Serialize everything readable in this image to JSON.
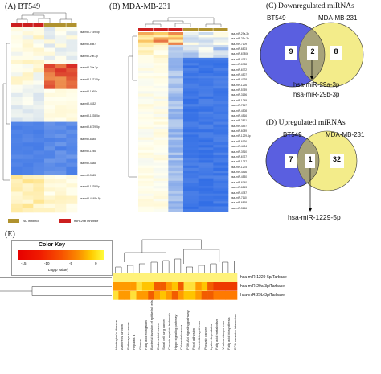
{
  "panels": {
    "a": {
      "title": "(A) BT549"
    },
    "b": {
      "title": "(B) MDA-MB-231"
    },
    "c": {
      "title": "(C) Downregulated miRNAs",
      "left_label": "BT549",
      "right_label": "MDA-MB-231",
      "left_count": "9",
      "overlap_count": "2",
      "right_count": "8",
      "genes": [
        "hsa-miR-29a-3p",
        "hsa-miR-29b-3p"
      ]
    },
    "d": {
      "title": "(D) Upregulated miRNAs",
      "left_label": "BT549",
      "right_label": "MDA-MB-231",
      "left_count": "7",
      "overlap_count": "1",
      "right_count": "32",
      "genes": [
        "hsa-miR-1229-5p"
      ]
    },
    "e": {
      "title": "(E)",
      "color_key_title": "Color Key",
      "ticks": [
        "-15",
        "-10",
        "-5",
        "0"
      ],
      "axis_label": "Log(p value)"
    }
  },
  "legend": {
    "nc": "NC inhibitor",
    "mir": "miR-29b inhibitor"
  },
  "heatmap_a_rows": [
    "hsa-miR-7159-5p",
    "hsa-miR-6087",
    "hsa-miR-29b-3p",
    "hsa-miR-29a-3p",
    "hsa-miR-1271-5p",
    "hsa-miR-1260a",
    "hsa-miR-4532",
    "hsa-miR-1228-5p",
    "hsa-miR-6729-5p",
    "hsa-miR-8485",
    "hsa-miR-1246",
    "hsa-miR-4488",
    "hsa-miR-3665",
    "hsa-miR-1229-5p",
    "hsa-miR-4448a-5p"
  ],
  "heatmap_b_rows": [
    "hsa-miR-29a-3p",
    "hsa-miR-29b-3p",
    "hsa-miR-7109",
    "hsa-miR-6803",
    "hsa-miR-6780b",
    "hsa-miR-4731",
    "hsa-miR-6738",
    "hsa-miR-6772",
    "hsa-miR-4507",
    "hsa-miR-4728",
    "hsa-miR-1226",
    "hsa-miR-5739",
    "hsa-miR-3196",
    "hsa-miR-1249",
    "hsa-miR-7847",
    "hsa-miR-4508",
    "hsa-miR-4516",
    "hsa-miR-2861",
    "hsa-miR-4497",
    "hsa-miR-6089",
    "hsa-miR-1229-5p",
    "hsa-miR-6126",
    "hsa-miR-4484",
    "hsa-miR-3960",
    "hsa-miR-6727",
    "hsa-miR-1237",
    "hsa-miR-1275",
    "hsa-miR-4466",
    "hsa-miR-4530",
    "hsa-miR-6740",
    "hsa-miR-6813",
    "hsa-miR-4787",
    "hsa-miR-7110",
    "hsa-miR-6868",
    "hsa-miR-3656"
  ],
  "pathway_rows": [
    "hsa-miR-1229-5p/Tarbase",
    "hsa-miR-29a-3p/Tarbase",
    "hsa-miR-29b-3p/Tarbase"
  ],
  "pathways": [
    "Huntington's disease",
    "Adherens junction",
    "Pathways in cancer",
    "Hepatitis B",
    "Glioma",
    "Fatty acid elongation",
    "Bacterial invasion of epithelial cells",
    "Endometrial cancer",
    "Small cell lung cancer",
    "Chronic myeloid leukemia",
    "Hippo signaling pathway",
    "Colorectal cancer",
    "PI3K-Akt signaling pathway",
    "Focal adhesion",
    "Steroid biosynthesis",
    "Prostate cancer",
    "Lysine degradation",
    "Fatty acid metabolism",
    "Viral carcinogenesis",
    "Fatty acid biosynthesis",
    "ECM-receptor interaction"
  ],
  "colors": {
    "nc": "#b0922e",
    "mir": "#cc1f1f",
    "venn_left": "#5a5fe0",
    "venn_right": "#f3ec8a",
    "venn_overlap": "#a7a37a"
  }
}
